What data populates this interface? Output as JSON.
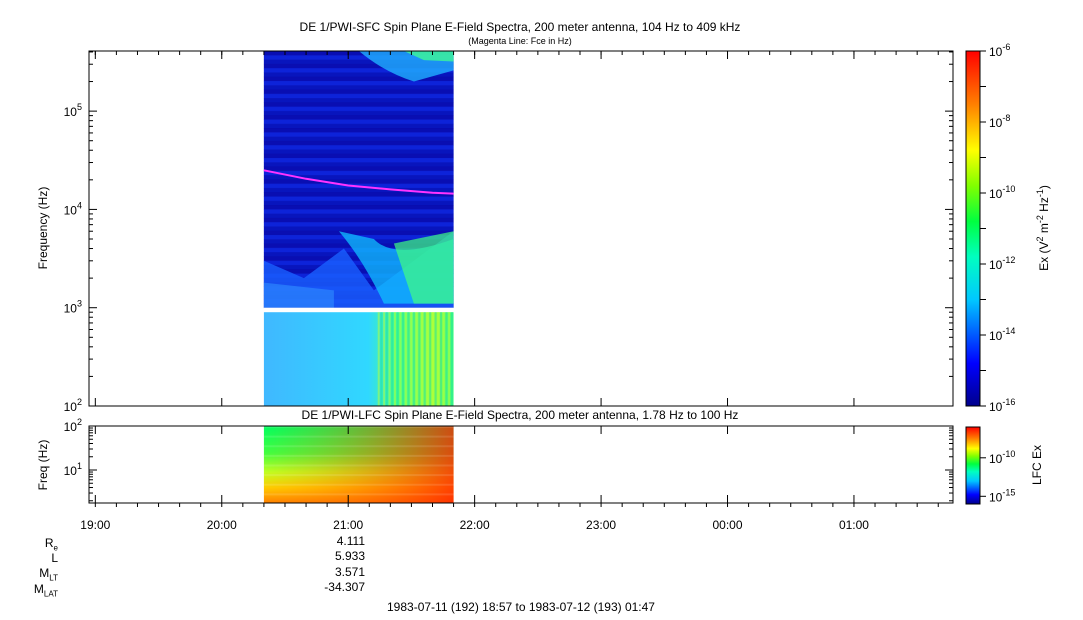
{
  "chart_data": [
    {
      "type": "heatmap",
      "title": "DE 1/PWI-SFC  Spin Plane E-Field Spectra, 200 meter antenna, 104 Hz to 409 kHz",
      "subtitle": "(Magenta Line: Fce in Hz)",
      "ylabel": "Frequency (Hz)",
      "yscale": "log",
      "ylim": [
        100,
        409000
      ],
      "yticks": [
        "10^2",
        "10^3",
        "10^4",
        "10^5"
      ],
      "colorbar": {
        "label": "Ex (V^2 m^-2 Hz^-1)",
        "scale": "log",
        "range": [
          1e-16,
          1e-06
        ],
        "ticks": [
          "10^-16",
          "10^-14",
          "10^-12",
          "10^-10",
          "10^-8",
          "10^-6"
        ]
      },
      "data_coverage": {
        "start": "20:20",
        "end": "21:50"
      },
      "gap_band_hz": [
        900,
        1000
      ],
      "fce_line": {
        "name": "Fce",
        "color": "#ff33ff",
        "times": [
          "20:20",
          "20:40",
          "21:00",
          "21:20",
          "21:40",
          "21:50"
        ],
        "values_hz": [
          25000,
          20500,
          17500,
          16000,
          14800,
          14500
        ]
      }
    },
    {
      "type": "heatmap",
      "title": "DE 1/PWI-LFC  Spin Plane E-Field Spectra, 200 meter antenna, 1.78 Hz to 100 Hz",
      "ylabel": "Freq (Hz)",
      "yscale": "log",
      "ylim": [
        1.78,
        100
      ],
      "yticks": [
        "10^1",
        "10^2"
      ],
      "colorbar": {
        "label": "LFC Ex",
        "scale": "log",
        "range": [
          1e-16,
          1e-06
        ],
        "ticks": [
          "10^-15",
          "10^-10"
        ]
      },
      "data_coverage": {
        "start": "20:20",
        "end": "21:50"
      }
    }
  ],
  "x_axis": {
    "ticks": [
      "19:00",
      "20:00",
      "21:00",
      "22:00",
      "23:00",
      "00:00",
      "01:00"
    ],
    "range_label": "1983-07-11 (192) 18:57 to 1983-07-12 (193) 01:47"
  },
  "ephemeris": {
    "rows": [
      {
        "label": "Re",
        "value": "4.111"
      },
      {
        "label": "L",
        "value": "5.933"
      },
      {
        "label": "MLT",
        "value": "3.571"
      },
      {
        "label": "MLAT",
        "value": "-34.307"
      }
    ]
  }
}
